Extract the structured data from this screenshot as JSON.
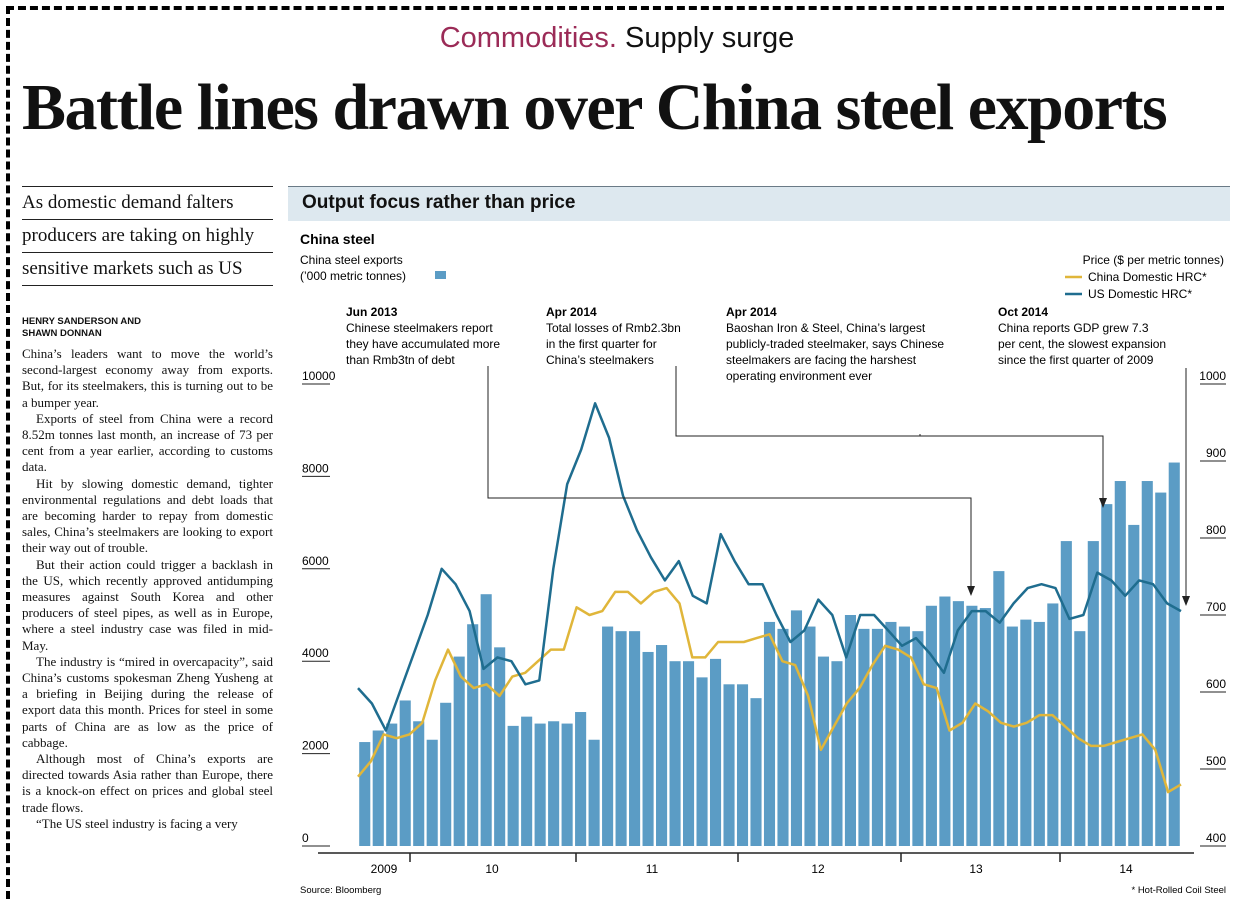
{
  "kicker": {
    "section": "Commodities.",
    "topic": "Supply surge"
  },
  "headline": "Battle lines drawn over China steel exports",
  "standfirst": [
    "As domestic demand falters",
    "producers are taking on highly",
    "sensitive markets such as US"
  ],
  "byline": {
    "line1": "HENRY SANDERSON AND",
    "line2": "SHAWN DONNAN"
  },
  "body": [
    "China’s leaders want to move the world’s second-largest economy away from exports. But, for its steelmakers, this is turning out to be a bumper year.",
    "Exports of steel from China were a record 8.52m tonnes last month, an increase of 73 per cent from a year earlier, according to customs data.",
    "Hit by slowing domestic demand, tighter environmental regulations and debt loads that are becoming harder to repay from domestic sales, China’s steelmakers are looking to export their way out of trouble.",
    "But their action could trigger a backlash in the US, which recently approved antidumping measures against South Korea and other producers of steel pipes, as well as in Europe, where a steel industry case was filed in mid-May.",
    "The industry is “mired in overcapacity”, said China’s customs spokesman Zheng Yusheng at a briefing in Beijing during the release of export data this month. Prices for steel in some parts of China are as low as the price of cabbage.",
    "Although most of China’s exports are directed towards Asia rather than Europe, there is a knock-on effect on prices and global steel trade flows.",
    "“The US steel industry is facing a very"
  ],
  "chart_data": {
    "type": "bar",
    "header": "Output focus rather than price",
    "title": "China steel",
    "bar_series_label": [
      "China steel exports",
      "(’000 metric tonnes)"
    ],
    "right_axis_title": "Price ($ per metric tonnes)",
    "legend_placement": "top-right",
    "source": "Source: Bloomberg",
    "footnote": "* Hot-Rolled Coil Steel",
    "left_axis": {
      "ticks": [
        "0",
        "2000",
        "4000",
        "6000",
        "8000",
        "10000"
      ],
      "ylim": [
        0,
        10000
      ]
    },
    "right_axis": {
      "ticks": [
        "400",
        "500",
        "600",
        "700",
        "800",
        "900",
        "1000"
      ],
      "ylim": [
        400,
        1000
      ]
    },
    "x_labels": [
      "2009",
      "10",
      "11",
      "12",
      "13",
      "14"
    ],
    "colors": {
      "bars": "#5b9cc5",
      "china_line": "#e0b63a",
      "us_line": "#1f6d8f"
    },
    "exports": [
      2250,
      2500,
      2650,
      3150,
      2700,
      2300,
      3100,
      4100,
      4800,
      5450,
      4300,
      2600,
      2800,
      2650,
      2700,
      2650,
      2900,
      2300,
      4750,
      4650,
      4650,
      4200,
      4350,
      4000,
      4000,
      3650,
      4050,
      3500,
      3500,
      3200,
      4850,
      4700,
      5100,
      4750,
      4100,
      4000,
      5000,
      4700,
      4700,
      4850,
      4750,
      4650,
      5200,
      5400,
      5300,
      5200,
      5150,
      5950,
      4750,
      4900,
      4850,
      5250,
      6600,
      4650,
      6600,
      7400,
      7900,
      6950,
      7900,
      7650,
      8300
    ],
    "line_series": [
      {
        "name": "China Domestic HRC*",
        "values": [
          490,
          510,
          545,
          540,
          545,
          560,
          615,
          655,
          620,
          605,
          610,
          595,
          620,
          625,
          640,
          655,
          655,
          710,
          700,
          705,
          730,
          730,
          715,
          730,
          735,
          715,
          645,
          645,
          665,
          665,
          665,
          670,
          675,
          640,
          635,
          595,
          525,
          555,
          585,
          605,
          635,
          660,
          655,
          645,
          610,
          605,
          550,
          560,
          585,
          575,
          560,
          555,
          560,
          570,
          570,
          555,
          540,
          530,
          530,
          535,
          540,
          545,
          525,
          470,
          480
        ]
      },
      {
        "name": "US Domestic HRC*",
        "values": [
          605,
          585,
          550,
          600,
          650,
          700,
          760,
          740,
          705,
          630,
          645,
          640,
          610,
          615,
          760,
          870,
          915,
          975,
          930,
          855,
          810,
          775,
          745,
          770,
          725,
          715,
          805,
          770,
          740,
          740,
          700,
          665,
          680,
          720,
          700,
          645,
          700,
          700,
          680,
          660,
          670,
          650,
          625,
          680,
          705,
          705,
          690,
          715,
          735,
          740,
          735,
          695,
          700,
          755,
          745,
          725,
          745,
          740,
          715,
          705
        ]
      }
    ],
    "annotations": [
      {
        "date": "Jun 2013",
        "text": [
          "Chinese steelmakers report",
          "they have accumulated more",
          "than Rmb3tn of debt"
        ]
      },
      {
        "date": "Apr 2014",
        "text": [
          "Total losses of Rmb2.3bn",
          "in the first quarter for",
          "China’s steelmakers"
        ]
      },
      {
        "date": "Apr 2014",
        "text": [
          "Baoshan Iron & Steel, China’s largest",
          "publicly-traded steelmaker, says Chinese",
          "steelmakers are facing the harshest",
          "operating environment ever"
        ]
      },
      {
        "date": "Oct 2014",
        "text": [
          "China reports GDP grew 7.3",
          "per cent, the slowest expansion",
          "since the first quarter of 2009"
        ]
      }
    ]
  }
}
